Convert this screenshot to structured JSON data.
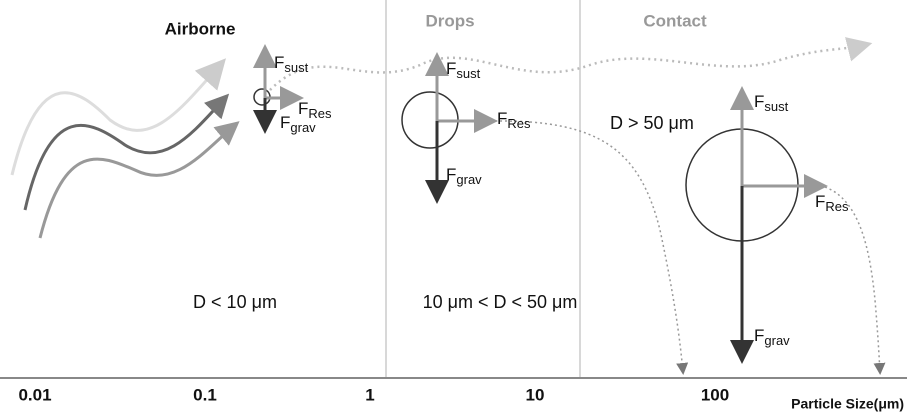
{
  "headers": {
    "airborne": "Airborne",
    "drops": "Drops",
    "contact": "Contact"
  },
  "regions": [
    {
      "forces": [
        {
          "symbol": "F",
          "sub": "sust"
        },
        {
          "symbol": "F",
          "sub": "Res"
        },
        {
          "symbol": "F",
          "sub": "grav"
        }
      ],
      "size_range": "D < 10 μm"
    },
    {
      "forces": [
        {
          "symbol": "F",
          "sub": "sust"
        },
        {
          "symbol": "F",
          "sub": "Res"
        },
        {
          "symbol": "F",
          "sub": "grav"
        }
      ],
      "size_range": "10 μm < D < 50 μm"
    },
    {
      "forces": [
        {
          "symbol": "F",
          "sub": "sust"
        },
        {
          "symbol": "F",
          "sub": "Res"
        },
        {
          "symbol": "F",
          "sub": "grav"
        }
      ],
      "size_range": "D > 50 μm"
    }
  ],
  "axis": {
    "ticks": [
      "0.01",
      "0.1",
      "1",
      "10",
      "100"
    ],
    "title": "Particle Size(μm)"
  }
}
